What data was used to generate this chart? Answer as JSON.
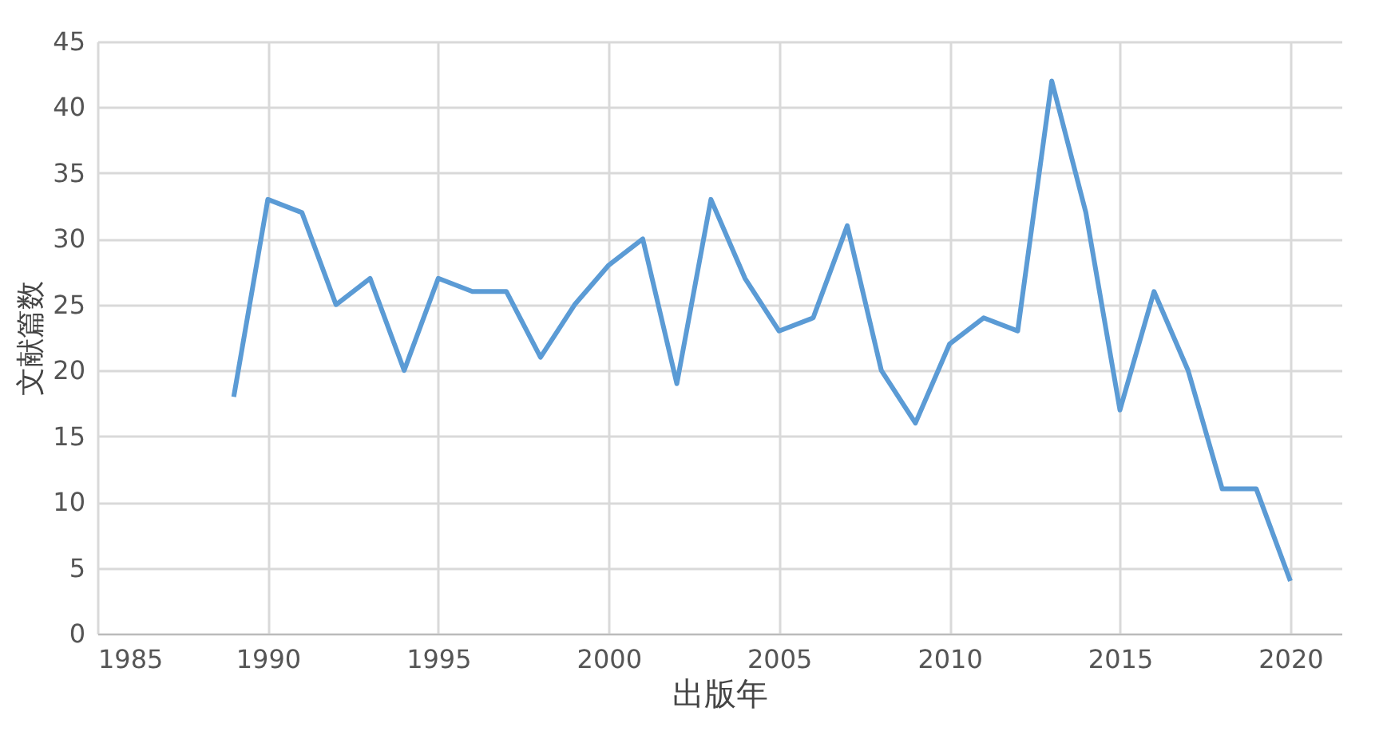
{
  "chart_data": {
    "type": "line",
    "xlabel": "出版年",
    "ylabel": "文献篇数",
    "x": [
      1989,
      1990,
      1991,
      1992,
      1993,
      1994,
      1995,
      1996,
      1997,
      1998,
      1999,
      2000,
      2001,
      2002,
      2003,
      2004,
      2005,
      2006,
      2007,
      2008,
      2009,
      2010,
      2011,
      2012,
      2013,
      2014,
      2015,
      2016,
      2017,
      2018,
      2019,
      2020
    ],
    "series": [
      {
        "color": "#5b9bd5",
        "values": [
          18,
          33,
          32,
          25,
          27,
          20,
          27,
          26,
          26,
          21,
          25,
          28,
          30,
          19,
          33,
          27,
          23,
          24,
          31,
          20,
          16,
          22,
          24,
          23,
          42,
          32,
          17,
          26,
          20,
          11,
          11,
          4
        ]
      }
    ],
    "xlim": [
      1985,
      2021.5
    ],
    "xticks": [
      1985,
      1990,
      1995,
      2000,
      2005,
      2010,
      2015,
      2020
    ],
    "ylim": [
      0,
      45
    ],
    "yticks": [
      0,
      5,
      10,
      15,
      20,
      25,
      30,
      35,
      40,
      45
    ],
    "grid": true,
    "marker": "none",
    "line_style": "solid"
  }
}
